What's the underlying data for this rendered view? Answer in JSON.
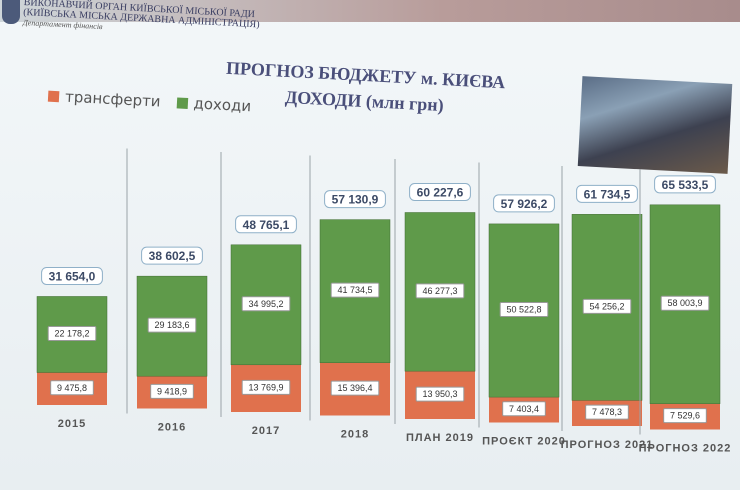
{
  "header": {
    "org_line1": "ВИКОНАВЧИЙ ОРГАН КИЇВСЬКОЇ МІСЬКОЇ РАДИ",
    "org_line2": "(КИЇВСЬКА МІСЬКА ДЕРЖАВНА АДМІНІСТРАЦІЯ)",
    "department": "Департамент фінансів"
  },
  "chart_data": {
    "type": "bar",
    "stacked": true,
    "title": "ПРОГНОЗ БЮДЖЕТУ м. КИЄВА",
    "subtitle": "ДОХОДИ (млн грн)",
    "legend_position": "top-left",
    "categories": [
      "2015",
      "2016",
      "2017",
      "2018",
      "ПЛАН 2019",
      "ПРОЄКТ 2020",
      "ПРОГНОЗ 2021",
      "ПРОГНОЗ 2022"
    ],
    "series": [
      {
        "name": "трансферти",
        "color": "#e0714d",
        "values": [
          9475.8,
          9418.9,
          13769.9,
          15396.4,
          13950.3,
          7403.4,
          7478.3,
          7529.6
        ],
        "labels": [
          "9 475,8",
          "9 418,9",
          "13 769,9",
          "15 396,4",
          "13 950,3",
          "7 403,4",
          "7 478,3",
          "7 529,6"
        ]
      },
      {
        "name": "доходи",
        "color": "#5f9a4a",
        "values": [
          22178.2,
          29183.6,
          34995.2,
          41734.5,
          46277.3,
          50522.8,
          54256.2,
          58003.9
        ],
        "labels": [
          "22 178,2",
          "29 183,6",
          "34 995,2",
          "41 734,5",
          "46 277,3",
          "50 522,8",
          "54 256,2",
          "58 003,9"
        ]
      }
    ],
    "totals": [
      31654.0,
      38602.5,
      48765.1,
      57130.9,
      60227.6,
      57926.2,
      61734.5,
      65533.5
    ],
    "total_labels": [
      "31 654,0",
      "38 602,5",
      "48 765,1",
      "57 130,9",
      "60 227,6",
      "57 926,2",
      "61 734,5",
      "65 533,5"
    ],
    "grid": false
  }
}
